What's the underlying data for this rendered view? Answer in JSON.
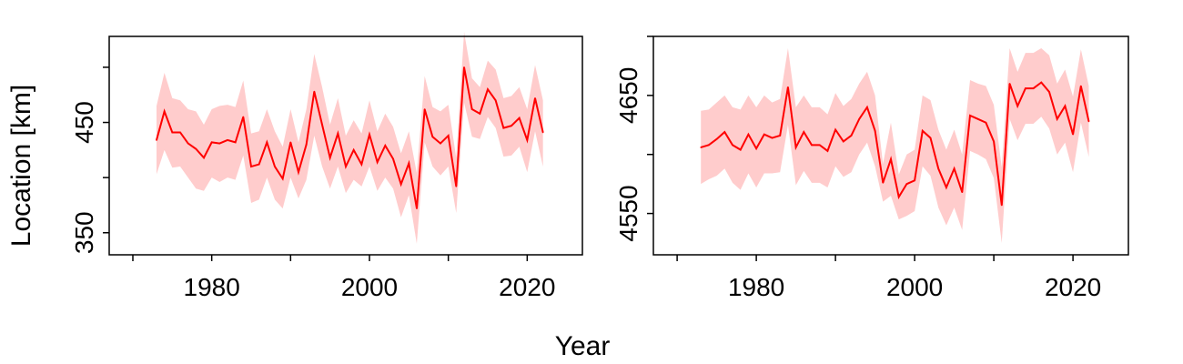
{
  "figure": {
    "xlabel": "Year",
    "ylabel": "Location [km]"
  },
  "colors": {
    "line": "#ff0000",
    "band": "#ffcccc",
    "axis": "#000000"
  },
  "chart_data": [
    {
      "type": "line",
      "xlim": [
        1967,
        2027
      ],
      "ylim": [
        330,
        528
      ],
      "xticks": [
        1970,
        1980,
        1990,
        2000,
        2010,
        2020
      ],
      "xtick_labels": [
        "",
        "1980",
        "",
        "2000",
        "",
        "2020"
      ],
      "yticks": [
        350,
        400,
        450,
        500
      ],
      "ytick_labels": [
        "350",
        "",
        "450",
        ""
      ],
      "x": [
        1973,
        1974,
        1975,
        1976,
        1977,
        1978,
        1979,
        1980,
        1981,
        1982,
        1983,
        1984,
        1985,
        1986,
        1987,
        1988,
        1989,
        1990,
        1991,
        1992,
        1993,
        1994,
        1995,
        1996,
        1997,
        1998,
        1999,
        2000,
        2001,
        2002,
        2003,
        2004,
        2005,
        2006,
        2007,
        2008,
        2009,
        2010,
        2011,
        2012,
        2013,
        2014,
        2015,
        2016,
        2017,
        2018,
        2019,
        2020,
        2021,
        2022
      ],
      "series": [
        {
          "values": [
            434,
            460,
            441,
            441,
            431,
            426,
            418,
            432,
            431,
            434,
            432,
            455,
            410,
            412,
            432,
            410,
            399,
            432,
            405,
            430,
            478,
            448,
            418,
            440,
            410,
            425,
            412,
            439,
            414,
            429,
            417,
            394,
            413,
            372,
            462,
            437,
            431,
            438,
            392,
            500,
            462,
            458,
            480,
            470,
            445,
            447,
            454,
            434,
            472,
            441
          ],
          "lower": [
            403,
            425,
            409,
            410,
            400,
            390,
            388,
            400,
            396,
            400,
            398,
            420,
            377,
            380,
            400,
            380,
            372,
            400,
            381,
            398,
            438,
            410,
            390,
            410,
            386,
            398,
            392,
            410,
            388,
            400,
            390,
            364,
            384,
            340,
            432,
            410,
            402,
            410,
            368,
            468,
            437,
            435,
            455,
            445,
            419,
            420,
            428,
            405,
            442,
            410
          ],
          "upper": [
            465,
            495,
            472,
            470,
            462,
            460,
            448,
            462,
            465,
            466,
            464,
            488,
            440,
            442,
            462,
            442,
            428,
            462,
            432,
            462,
            512,
            482,
            448,
            472,
            438,
            452,
            440,
            470,
            442,
            458,
            446,
            422,
            442,
            404,
            492,
            464,
            460,
            466,
            418,
            532,
            490,
            482,
            506,
            498,
            472,
            474,
            482,
            462,
            502,
            470
          ]
        }
      ]
    },
    {
      "type": "line",
      "xlim": [
        1967,
        2027
      ],
      "ylim": [
        4515,
        4700
      ],
      "xticks": [
        1970,
        1980,
        1990,
        2000,
        2010,
        2020
      ],
      "xtick_labels": [
        "",
        "1980",
        "",
        "2000",
        "",
        "2020"
      ],
      "yticks": [
        4550,
        4600,
        4650,
        4700
      ],
      "ytick_labels": [
        "4550",
        "",
        "4650",
        ""
      ],
      "x": [
        1973,
        1974,
        1975,
        1976,
        1977,
        1978,
        1979,
        1980,
        1981,
        1982,
        1983,
        1984,
        1985,
        1986,
        1987,
        1988,
        1989,
        1990,
        1991,
        1992,
        1993,
        1994,
        1995,
        1996,
        1997,
        1998,
        1999,
        2000,
        2001,
        2002,
        2003,
        2004,
        2005,
        2006,
        2007,
        2008,
        2009,
        2010,
        2011,
        2012,
        2013,
        2014,
        2015,
        2016,
        2017,
        2018,
        2019,
        2020,
        2021,
        2022
      ],
      "series": [
        {
          "values": [
            4606,
            4608,
            4613,
            4619,
            4608,
            4604,
            4617,
            4605,
            4617,
            4614,
            4616,
            4657,
            4606,
            4619,
            4608,
            4608,
            4603,
            4621,
            4611,
            4616,
            4630,
            4640,
            4620,
            4576,
            4596,
            4564,
            4575,
            4578,
            4620,
            4614,
            4588,
            4572,
            4588,
            4568,
            4633,
            4630,
            4627,
            4611,
            4557,
            4660,
            4641,
            4656,
            4656,
            4661,
            4653,
            4630,
            4641,
            4617,
            4658,
            4628
          ],
          "lower": [
            4575,
            4579,
            4582,
            4588,
            4576,
            4570,
            4584,
            4572,
            4584,
            4584,
            4585,
            4625,
            4574,
            4586,
            4576,
            4576,
            4572,
            4590,
            4581,
            4585,
            4600,
            4610,
            4590,
            4560,
            4565,
            4545,
            4548,
            4552,
            4590,
            4582,
            4555,
            4540,
            4555,
            4536,
            4603,
            4600,
            4596,
            4580,
            4525,
            4630,
            4612,
            4626,
            4626,
            4632,
            4622,
            4600,
            4610,
            4585,
            4627,
            4598
          ],
          "upper": [
            4637,
            4638,
            4644,
            4650,
            4640,
            4638,
            4650,
            4640,
            4650,
            4644,
            4647,
            4690,
            4640,
            4650,
            4640,
            4640,
            4634,
            4652,
            4641,
            4647,
            4660,
            4670,
            4650,
            4592,
            4627,
            4583,
            4600,
            4604,
            4650,
            4646,
            4621,
            4604,
            4621,
            4600,
            4663,
            4660,
            4658,
            4642,
            4589,
            4690,
            4670,
            4686,
            4686,
            4690,
            4684,
            4660,
            4672,
            4649,
            4689,
            4658
          ]
        }
      ]
    }
  ]
}
